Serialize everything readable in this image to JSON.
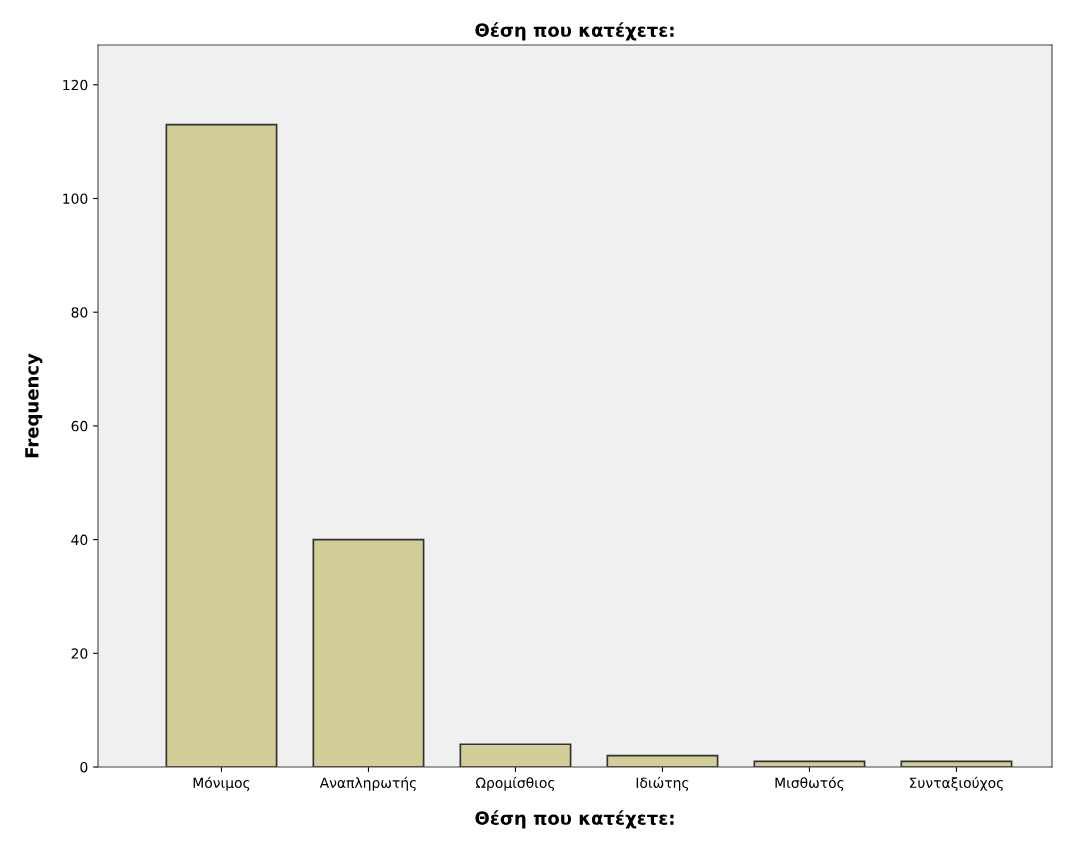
{
  "chart_data": {
    "type": "bar",
    "title": "Θέση που κατέχετε:",
    "xlabel": "Θέση που κατέχετε:",
    "ylabel": "Frequency",
    "categories": [
      "Μόνιμος",
      "Αναπληρωτής",
      "Ωρομίσθιος",
      "Ιδιώτης",
      "Μισθωτός",
      "Συνταξιούχος"
    ],
    "values": [
      113,
      40,
      4,
      2,
      1,
      1
    ],
    "color": "#d3ce97",
    "ylim": [
      0,
      127
    ],
    "yticks": [
      0,
      20,
      40,
      60,
      80,
      100,
      120
    ],
    "grid": false
  }
}
